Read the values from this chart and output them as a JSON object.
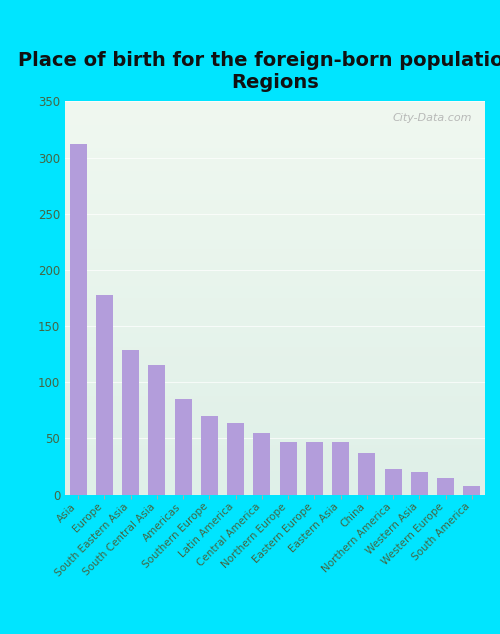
{
  "title": "Place of birth for the foreign-born population -\nRegions",
  "categories": [
    "Asia",
    "Europe",
    "South Eastern Asia",
    "South Central Asia",
    "Americas",
    "Southern Europe",
    "Latin America",
    "Central America",
    "Northern Europe",
    "Eastern Europe",
    "Eastern Asia",
    "China",
    "Northern America",
    "Western Asia",
    "Western Europe",
    "South America"
  ],
  "values": [
    312,
    178,
    129,
    115,
    85,
    70,
    64,
    55,
    47,
    47,
    47,
    37,
    23,
    20,
    15,
    8
  ],
  "bar_color": "#b39ddb",
  "background_color": "#00e5ff",
  "plot_bg_top": "#f0f8f0",
  "plot_bg_bottom": "#dff0e8",
  "ylim": [
    0,
    350
  ],
  "yticks": [
    0,
    50,
    100,
    150,
    200,
    250,
    300,
    350
  ],
  "title_fontsize": 14,
  "watermark": "City-Data.com"
}
